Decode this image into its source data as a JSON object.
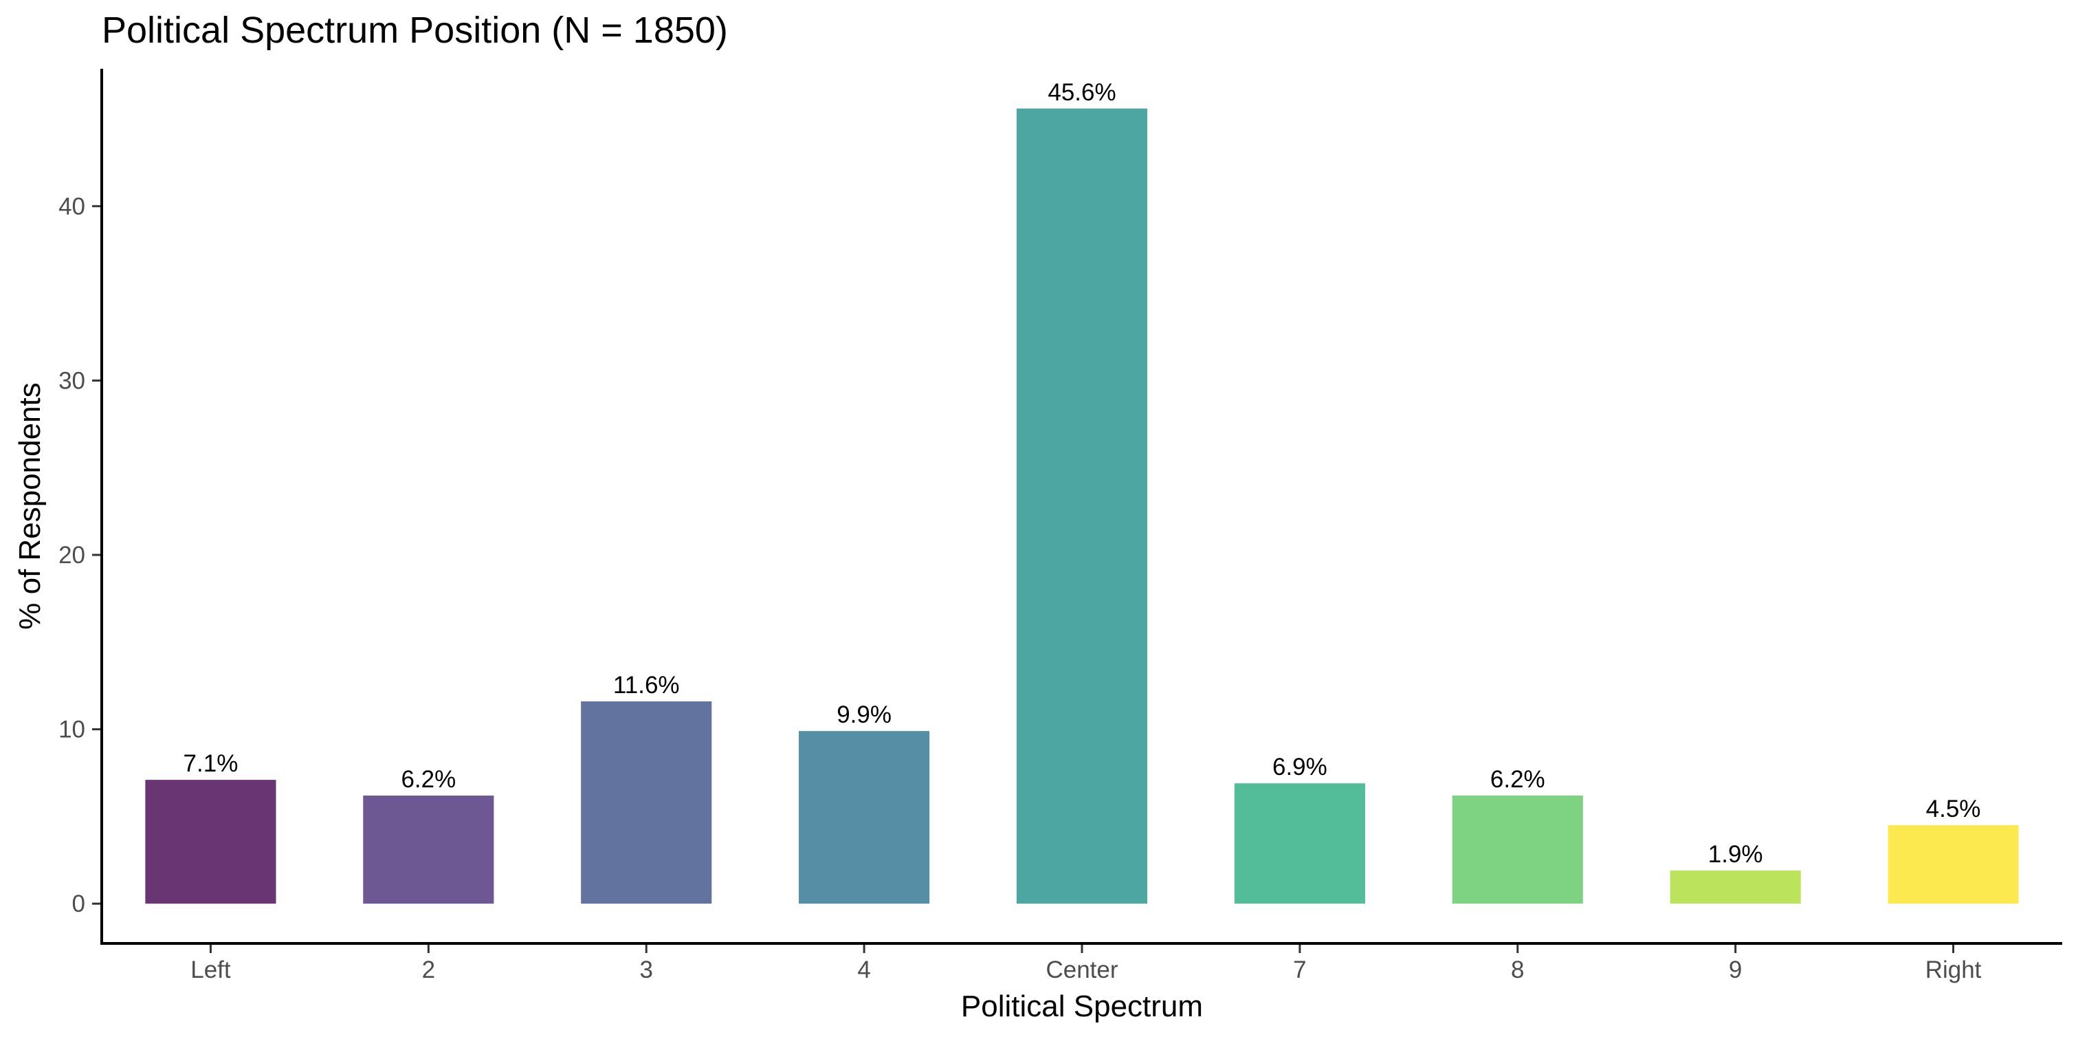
{
  "chart_data": {
    "type": "bar",
    "title": "Political Spectrum Position (N = 1850)",
    "xlabel": "Political Spectrum",
    "ylabel": "% of Respondents",
    "categories": [
      "Left",
      "2",
      "3",
      "4",
      "Center",
      "7",
      "8",
      "9",
      "Right"
    ],
    "values": [
      7.1,
      6.2,
      11.6,
      9.9,
      45.6,
      6.9,
      6.2,
      1.9,
      4.5
    ],
    "data_labels": [
      "7.1%",
      "6.2%",
      "11.6%",
      "9.9%",
      "45.6%",
      "6.9%",
      "6.2%",
      "1.9%",
      "4.5%"
    ],
    "colors": [
      "#6a3573",
      "#6e5893",
      "#62739f",
      "#568ea5",
      "#4ea6a3",
      "#53bc98",
      "#7ed382",
      "#bce35c",
      "#fce94f"
    ],
    "yticks": [
      0,
      10,
      20,
      30,
      40
    ],
    "ylim": [
      -2.28,
      47.88
    ],
    "grid": false,
    "legend": "none"
  }
}
